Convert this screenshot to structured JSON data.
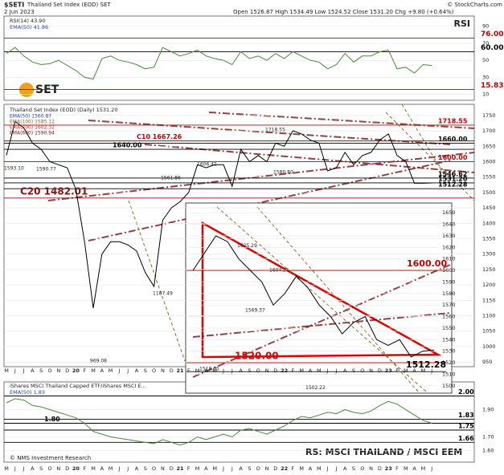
{
  "header": {
    "symbol": "$SETI",
    "name": "Thailand Set Index (EOD) SET",
    "date": "2 Jun 2023",
    "ohlc": "Open 1526.87  High 1534.49  Low 1524.52  Close 1531.20  Chg +9.80 (+0.64%)",
    "credit": "© StockCharts.com",
    "logo": "SET",
    "footer": "© NMS Investment Research",
    "rs_title": "RS: MSCI THAILAND / MSCI EEM"
  },
  "chart_data": [
    {
      "type": "line",
      "title": "RSI(14) 43.90",
      "subtitle": "EMA(50) 41.86",
      "label": "RSI",
      "series": [
        {
          "name": "RSI(14)",
          "color": "#4a8a3a",
          "values": [
            58,
            65,
            55,
            48,
            45,
            46,
            50,
            44,
            38,
            30,
            28,
            52,
            55,
            50,
            48,
            45,
            40,
            42,
            65,
            60,
            55,
            58,
            62,
            55,
            52,
            50,
            45,
            60,
            52,
            55,
            50,
            58,
            52,
            60,
            55,
            50,
            48,
            40,
            45,
            58,
            48,
            55,
            55,
            60,
            62,
            40,
            42,
            35,
            45,
            43.9
          ]
        }
      ],
      "ylim": [
        5,
        100
      ],
      "yticks": [
        10,
        30,
        50,
        70,
        90
      ],
      "levels": [
        {
          "value": 76,
          "label": "76.00",
          "color": "#c00000"
        },
        {
          "value": 60,
          "label": "60.00",
          "color": "#000000"
        },
        {
          "value": 15.83,
          "label": "15.83",
          "color": "#c00000"
        }
      ]
    },
    {
      "type": "line",
      "title": "Thailand Set Index (EOD) (Daily) 1531.20",
      "legend": [
        {
          "text": "EMA(50) 1560.87",
          "color": "#1f3fbf"
        },
        {
          "text": "EMA(100) 1585.12",
          "color": "#8a5a2a"
        },
        {
          "text": "EMA(200) 1602.32",
          "color": "#d02020"
        },
        {
          "text": "EMA(600) 1590.94",
          "color": "#7a1010"
        }
      ],
      "categories": [
        "M",
        "J",
        "J",
        "A",
        "S",
        "O",
        "N",
        "D",
        "20",
        "F",
        "M",
        "A",
        "M",
        "J",
        "J",
        "A",
        "S",
        "O",
        "N",
        "D",
        "21",
        "F",
        "M",
        "A",
        "M",
        "J",
        "J",
        "A",
        "S",
        "O",
        "N",
        "D",
        "22",
        "F",
        "M",
        "A",
        "M",
        "J",
        "J",
        "A",
        "S",
        "O",
        "N",
        "D",
        "23",
        "F",
        "M",
        "A",
        "M",
        "J"
      ],
      "series": [
        {
          "name": "Thailand Set Index",
          "color": "#000000",
          "values": [
            1620,
            1730,
            1710,
            1660,
            1640,
            1600,
            1590,
            1580,
            1510,
            1340,
            1125,
            1300,
            1340,
            1340,
            1330,
            1310,
            1240,
            1195,
            1410,
            1450,
            1470,
            1500,
            1590,
            1580,
            1590,
            1590,
            1520,
            1640,
            1600,
            1620,
            1600,
            1660,
            1650,
            1700,
            1690,
            1670,
            1660,
            1570,
            1580,
            1630,
            1590,
            1620,
            1630,
            1670,
            1690,
            1620,
            1600,
            1530,
            1530,
            1531
          ]
        }
      ],
      "ylim": [
        940,
        1760
      ],
      "yticks": [
        950,
        1000,
        1050,
        1100,
        1150,
        1200,
        1250,
        1300,
        1350,
        1400,
        1450,
        1500,
        1550,
        1600,
        1650,
        1700,
        1750
      ],
      "levels": [
        {
          "value": 1718.55,
          "label": "1718.55",
          "color": "#c00000"
        },
        {
          "value": 1660,
          "label": "1660.00",
          "color": "#000000"
        },
        {
          "value": 1600,
          "label": "1600.00",
          "color": "#c00000"
        },
        {
          "value": 1546.62,
          "label": "1546.62",
          "color": "#000000"
        },
        {
          "value": 1512.28,
          "label": "1512.28",
          "color": "#000000"
        },
        {
          "value": 1531.2,
          "label": "1531.20",
          "color": "#000000"
        },
        {
          "value": 1640,
          "label": "1640.00",
          "color": "#000000"
        },
        {
          "value": 1667.26,
          "label": "C10  1667.26",
          "color": "#c00000"
        },
        {
          "value": 1482.01,
          "label": "C20  1482.01",
          "color": "#8a1010"
        }
      ],
      "notes": [
        {
          "value": 1593.1,
          "label": "1593.10"
        },
        {
          "value": 1590.77,
          "label": "1590.77"
        },
        {
          "value": 1606.41,
          "label": "1606.41"
        },
        {
          "value": 1561.86,
          "label": "1561.86"
        },
        {
          "value": 1187.49,
          "label": "1187.49"
        },
        {
          "value": 969.08,
          "label": "969.08"
        },
        {
          "value": 1718.55,
          "label": "1718.55"
        },
        {
          "value": 1580.8,
          "label": "1580.80"
        }
      ]
    },
    {
      "type": "line",
      "series": [
        {
          "name": "Zoom",
          "color": "#000000",
          "values": [
            1600,
            1615,
            1630,
            1625,
            1610,
            1600,
            1590,
            1570,
            1580,
            1595,
            1585,
            1570,
            1560,
            1545,
            1555,
            1560,
            1540,
            1535,
            1540,
            1525,
            1530,
            1531
          ]
        }
      ],
      "ylim": [
        1495,
        1655
      ],
      "yticks": [
        1500,
        1510,
        1520,
        1530,
        1540,
        1550,
        1560,
        1570,
        1580,
        1590,
        1600,
        1610,
        1620,
        1630,
        1640,
        1650
      ],
      "levels": [
        {
          "value": 1600,
          "label": "1600.00",
          "color": "#c00000"
        },
        {
          "value": 1520,
          "label": "1520.00",
          "color": "#e00000"
        },
        {
          "value": 1512.28,
          "label": "1512.28",
          "color": "#000000"
        }
      ],
      "notes": [
        {
          "value": 1625.29,
          "label": "1625.29"
        },
        {
          "value": 1604.21,
          "label": "1604.21"
        },
        {
          "value": 1569.37,
          "label": "1569.37"
        },
        {
          "value": 1518.65,
          "label": "1518.65"
        },
        {
          "value": 1502.22,
          "label": "1502.22"
        }
      ]
    },
    {
      "type": "line",
      "title": "iShares MSCI Thailand Capped ETF/iShares MSCI E...",
      "subtitle": "EMA(50) 1.83",
      "categories": [
        "M",
        "J",
        "J",
        "A",
        "S",
        "O",
        "N",
        "D",
        "20",
        "F",
        "M",
        "A",
        "M",
        "J",
        "J",
        "A",
        "S",
        "O",
        "N",
        "D",
        "21",
        "F",
        "M",
        "A",
        "M",
        "J",
        "J",
        "A",
        "S",
        "O",
        "N",
        "D",
        "22",
        "F",
        "M",
        "A",
        "M",
        "J",
        "J",
        "A",
        "S",
        "O",
        "N",
        "D",
        "23",
        "F",
        "M",
        "A",
        "M",
        "J"
      ],
      "series": [
        {
          "name": "RS",
          "color": "#4a8a3a",
          "values": [
            1.95,
            1.98,
            1.97,
            1.93,
            1.92,
            1.9,
            1.88,
            1.86,
            1.84,
            1.8,
            1.74,
            1.72,
            1.7,
            1.69,
            1.68,
            1.67,
            1.66,
            1.65,
            1.68,
            1.66,
            1.64,
            1.66,
            1.7,
            1.68,
            1.7,
            1.72,
            1.7,
            1.75,
            1.76,
            1.74,
            1.72,
            1.75,
            1.78,
            1.82,
            1.85,
            1.84,
            1.86,
            1.88,
            1.87,
            1.9,
            1.88,
            1.87,
            1.89,
            1.93,
            1.96,
            1.94,
            1.9,
            1.86,
            1.82,
            1.8
          ]
        }
      ],
      "ylim": [
        1.55,
        2.05
      ],
      "yticks": [
        {
          "value": 1.6,
          "label": "1.60"
        },
        {
          "value": 1.7,
          "label": "1.70"
        },
        {
          "value": 1.9,
          "label": "1.90"
        }
      ],
      "levels": [
        {
          "value": 2,
          "label": "2.00",
          "color": "#000000"
        },
        {
          "value": 1.83,
          "label": "1.83",
          "color": "#000000"
        },
        {
          "value": 1.75,
          "label": "1.75",
          "color": "#000000"
        },
        {
          "value": 1.66,
          "label": "1.66",
          "color": "#000000"
        },
        {
          "value": 1.8,
          "label": "1.80",
          "color": "#000000"
        }
      ]
    }
  ]
}
